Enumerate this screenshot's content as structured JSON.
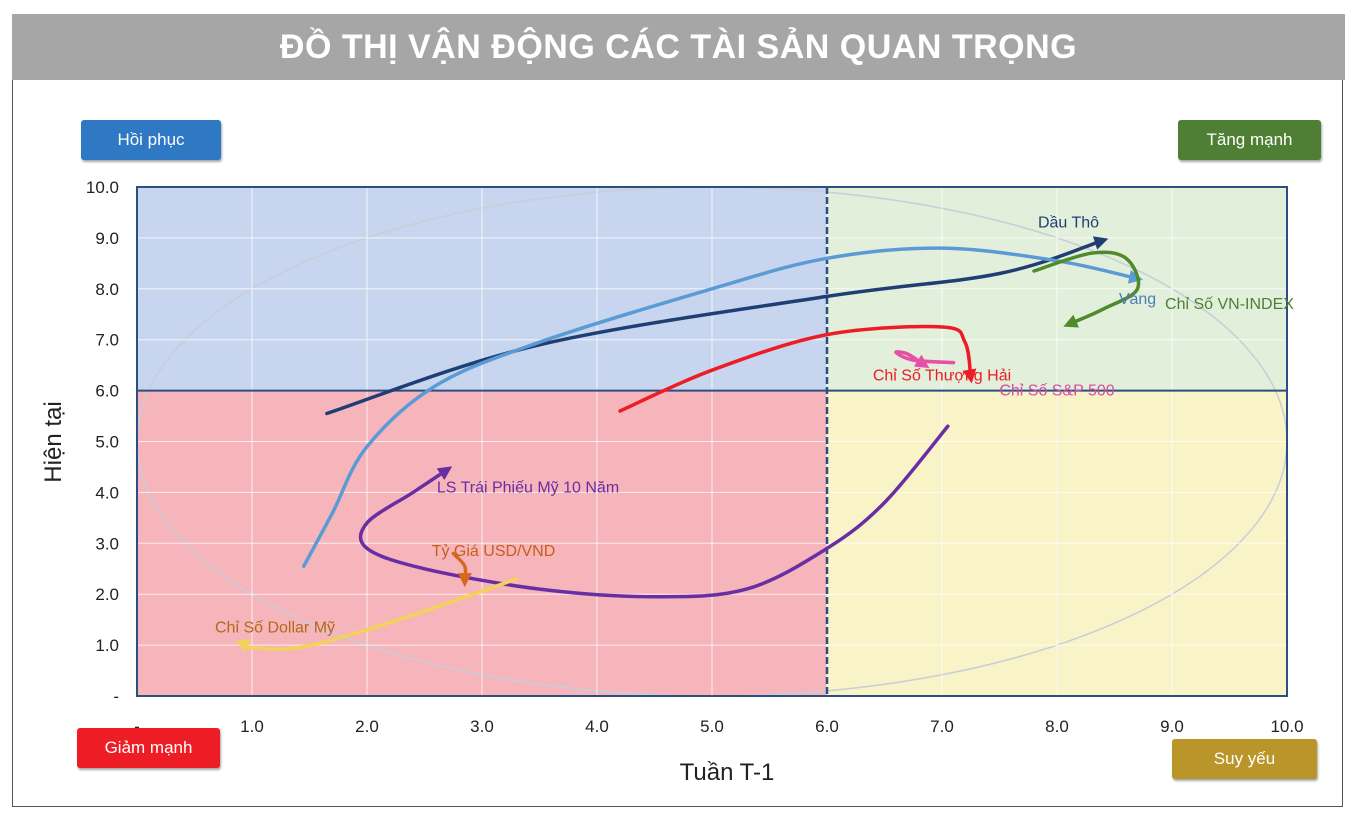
{
  "title": "ĐỒ THỊ VẬN ĐỘNG CÁC TÀI SẢN QUAN TRỌNG",
  "quadrants": {
    "top_left": {
      "label": "Hồi phục",
      "color": "#2e78c4"
    },
    "top_right": {
      "label": "Tăng mạnh",
      "color": "#4f7f35"
    },
    "bottom_left": {
      "label": "Giảm mạnh",
      "color": "#ee1c24"
    },
    "bottom_right": {
      "label": "Suy yếu",
      "color": "#b9952a"
    }
  },
  "chart_data": {
    "type": "line",
    "xlabel": "Tuần T-1",
    "ylabel": "Hiện tại",
    "xlim": [
      0,
      10
    ],
    "ylim": [
      0,
      10
    ],
    "divider": {
      "x": 6.0,
      "y": 6.0
    },
    "x_ticks": [
      "-",
      "1.0",
      "2.0",
      "3.0",
      "4.0",
      "5.0",
      "6.0",
      "7.0",
      "8.0",
      "9.0",
      "10.0"
    ],
    "y_ticks": [
      "-",
      "1.0",
      "2.0",
      "3.0",
      "4.0",
      "5.0",
      "6.0",
      "7.0",
      "8.0",
      "9.0",
      "10.0"
    ],
    "grid": true,
    "series": [
      {
        "name": "Dầu Thô",
        "color": "#1f3f74",
        "points": [
          [
            1.65,
            5.55
          ],
          [
            3.5,
            6.9
          ],
          [
            6.0,
            7.85
          ],
          [
            7.5,
            8.3
          ],
          [
            8.4,
            8.95
          ]
        ]
      },
      {
        "name": "Vàng",
        "color": "#5b9bd5",
        "points": [
          [
            1.45,
            2.55
          ],
          [
            1.7,
            3.6
          ],
          [
            2.0,
            4.9
          ],
          [
            2.6,
            6.1
          ],
          [
            3.5,
            6.95
          ],
          [
            5.0,
            8.0
          ],
          [
            6.0,
            8.6
          ],
          [
            7.0,
            8.8
          ],
          [
            8.0,
            8.55
          ],
          [
            8.7,
            8.2
          ]
        ]
      },
      {
        "name": "Chỉ Số VN-INDEX",
        "color": "#4f8a2b",
        "points": [
          [
            7.8,
            8.35
          ],
          [
            8.3,
            8.7
          ],
          [
            8.6,
            8.6
          ],
          [
            8.7,
            8.0
          ],
          [
            8.4,
            7.6
          ],
          [
            8.1,
            7.3
          ]
        ]
      },
      {
        "name": "Chỉ Số Thượng Hải",
        "color": "#ee1c24",
        "points": [
          [
            4.2,
            5.6
          ],
          [
            5.0,
            6.4
          ],
          [
            6.0,
            7.1
          ],
          [
            7.0,
            7.25
          ],
          [
            7.2,
            6.95
          ],
          [
            7.25,
            6.25
          ]
        ]
      },
      {
        "name": "Chỉ Số S&P 500",
        "color": "#e84fa8",
        "points": [
          [
            7.1,
            6.55
          ],
          [
            6.75,
            6.6
          ],
          [
            6.6,
            6.75
          ],
          [
            6.7,
            6.72
          ],
          [
            6.85,
            6.5
          ]
        ]
      },
      {
        "name": "LS Trái Phiếu Mỹ 10 Năm",
        "color": "#6a2ea4",
        "points": [
          [
            7.05,
            5.3
          ],
          [
            6.5,
            3.8
          ],
          [
            6.0,
            2.9
          ],
          [
            5.3,
            2.1
          ],
          [
            4.5,
            1.95
          ],
          [
            3.5,
            2.1
          ],
          [
            2.5,
            2.5
          ],
          [
            2.0,
            2.9
          ],
          [
            2.0,
            3.4
          ],
          [
            2.4,
            4.0
          ],
          [
            2.7,
            4.45
          ]
        ]
      },
      {
        "name": "Tỷ Giá USD/VND",
        "color": "#d4691e",
        "points": [
          [
            2.75,
            2.8
          ],
          [
            2.85,
            2.55
          ],
          [
            2.85,
            2.25
          ]
        ]
      },
      {
        "name": "Chỉ Số Dollar Mỹ",
        "color": "#f2d25a",
        "points": [
          [
            3.3,
            2.3
          ],
          [
            2.8,
            1.9
          ],
          [
            2.0,
            1.3
          ],
          [
            1.4,
            0.95
          ],
          [
            1.0,
            0.95
          ],
          [
            0.9,
            1.05
          ]
        ]
      }
    ],
    "series_labels": [
      {
        "text": "Dầu Thô",
        "x": 8.1,
        "y": 9.2,
        "color": "#1f3f74"
      },
      {
        "text": "Vàng",
        "x": 8.7,
        "y": 7.7,
        "color": "#4a7fb8"
      },
      {
        "text": "Chỉ Số VN-INDEX",
        "x": 9.5,
        "y": 7.6,
        "color": "#4f7f35"
      },
      {
        "text": "Chỉ Số Thượng Hải",
        "x": 7.0,
        "y": 6.2,
        "color": "#ee1c24"
      },
      {
        "text": "Chỉ Số S&P 500",
        "x": 8.0,
        "y": 5.9,
        "color": "#d94aa3"
      },
      {
        "text": "LS Trái Phiếu Mỹ 10 Năm",
        "x": 3.4,
        "y": 4.0,
        "color": "#6a2ea4"
      },
      {
        "text": "Tỷ Giá USD/VND",
        "x": 3.1,
        "y": 2.75,
        "color": "#c85e1a"
      },
      {
        "text": "Chỉ Số Dollar Mỹ",
        "x": 1.2,
        "y": 1.25,
        "color": "#b26a1a"
      }
    ]
  }
}
